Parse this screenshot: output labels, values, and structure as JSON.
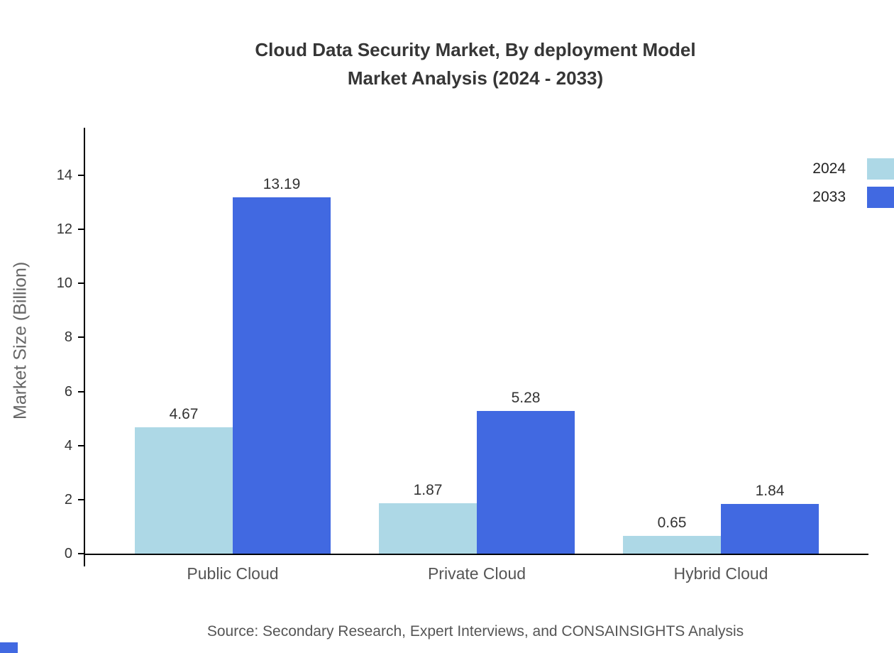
{
  "title": {
    "line1": "Cloud Data Security Market, By deployment Model",
    "line2": "Market Analysis (2024 - 2033)"
  },
  "source": "Source: Secondary Research, Expert Interviews, and CONSAINSIGHTS Analysis",
  "accent_color": "#4169E1",
  "chart_data": {
    "type": "bar",
    "title": "Cloud Data Security Market, By deployment Model Market Analysis (2024 - 2033)",
    "categories": [
      "Public Cloud",
      "Private Cloud",
      "Hybrid Cloud"
    ],
    "series": [
      {
        "name": "2024",
        "color": "#ADD8E6",
        "values": [
          4.67,
          1.87,
          0.65
        ]
      },
      {
        "name": "2033",
        "color": "#4169E1",
        "values": [
          13.19,
          5.28,
          1.84
        ]
      }
    ],
    "xlabel": "",
    "ylabel": "Market Size (Billion)",
    "yticks": [
      0,
      2,
      4,
      6,
      8,
      10,
      12,
      14
    ],
    "ylim": [
      0,
      15.8
    ],
    "grid": false,
    "value_labels": true,
    "legend_position": "top-right"
  }
}
